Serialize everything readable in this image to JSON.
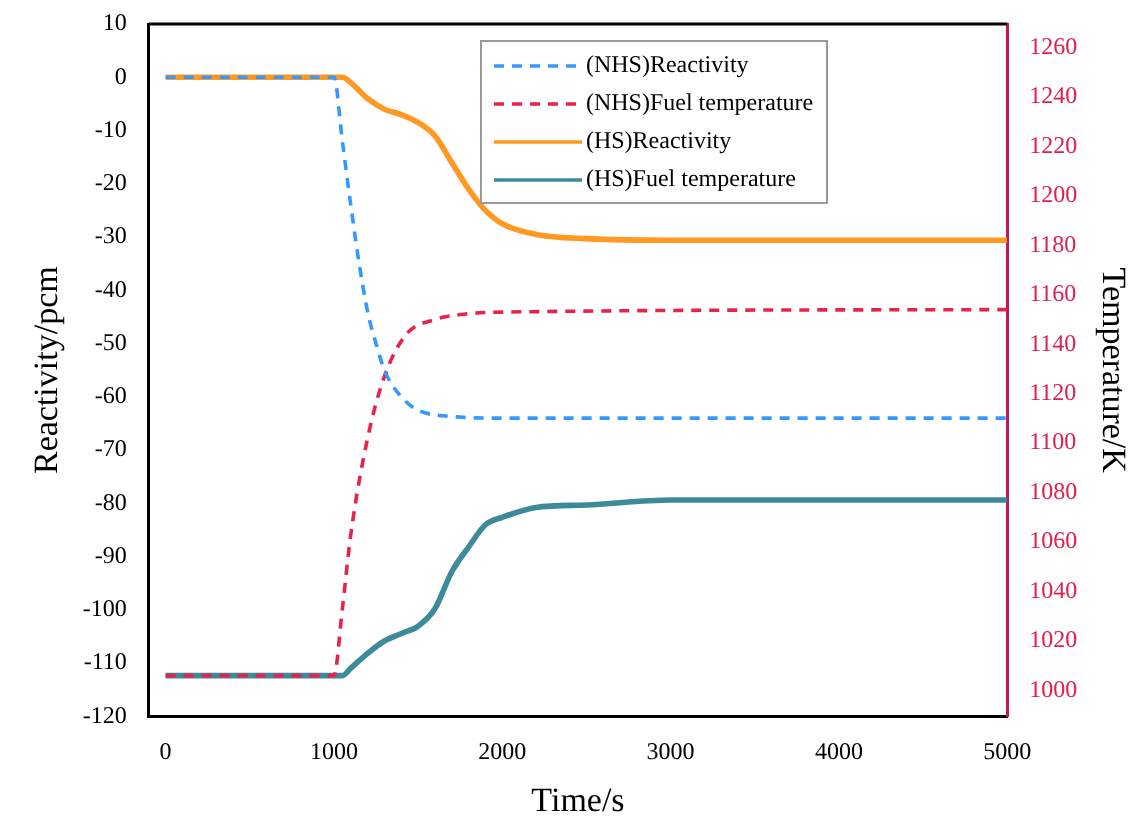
{
  "chart_data": {
    "type": "line",
    "xlabel": "Time/s",
    "ylabel": "Reactivity/pcm",
    "y2label": "Temperature/K",
    "xlim": [
      -100,
      5000
    ],
    "xticks": [
      0,
      1000,
      2000,
      3000,
      4000,
      5000
    ],
    "ylim": [
      -120,
      10
    ],
    "yticks": [
      -120,
      -110,
      -100,
      -90,
      -80,
      -70,
      -60,
      -50,
      -40,
      -30,
      -20,
      -10,
      0,
      10
    ],
    "y2lim": [
      989.5,
      1269.5
    ],
    "y2ticks": [
      1000,
      1020,
      1040,
      1060,
      1080,
      1100,
      1120,
      1140,
      1160,
      1180,
      1200,
      1220,
      1240,
      1260
    ],
    "grid": false,
    "legend": "top right",
    "marker": "none",
    "series": [
      {
        "name": "(NHS)Reactivity",
        "color": "#3399ff",
        "line_style": "dashed",
        "x": [
          0,
          1000,
          1050,
          1100,
          1150,
          1200,
          1250,
          1300,
          1400,
          1500,
          1700,
          2000,
          5000
        ],
        "values": [
          0,
          0,
          -12,
          -24,
          -35,
          -44,
          -50,
          -55,
          -60,
          -62.5,
          -63.7,
          -64,
          -64
        ]
      },
      {
        "name": "(NHS)Fuel temperature",
        "color": "#e8224a",
        "line_style": "dashed",
        "axis": "y2",
        "x": [
          0,
          1000,
          1050,
          1100,
          1200,
          1300,
          1430,
          1600,
          1750,
          2000,
          5000
        ],
        "values": [
          1006,
          1006,
          1033,
          1063,
          1102,
          1127,
          1144,
          1150,
          1152,
          1153,
          1154
        ]
      },
      {
        "name": "(HS)Reactivity",
        "color": "#ff9922",
        "line_style": "solid",
        "x": [
          0,
          1050,
          1100,
          1200,
          1300,
          1400,
          1500,
          1600,
          1700,
          1800,
          1900,
          2000,
          2200,
          2500,
          3000,
          5000
        ],
        "values": [
          0,
          0,
          -1,
          -4,
          -6,
          -7,
          -8.5,
          -11,
          -16,
          -21,
          -25,
          -27.5,
          -29.5,
          -30.3,
          -30.6,
          -30.6
        ]
      },
      {
        "name": "(HS)Fuel temperature",
        "color": "#3d8a9a",
        "line_style": "solid",
        "axis": "y2",
        "x": [
          0,
          1050,
          1100,
          1200,
          1300,
          1400,
          1500,
          1600,
          1700,
          1800,
          1900,
          2000,
          2200,
          2500,
          3000,
          5000
        ],
        "values": [
          1006,
          1006,
          1009,
          1015,
          1020,
          1023,
          1026,
          1033,
          1048,
          1058,
          1067,
          1070,
          1074,
          1075,
          1077,
          1077
        ]
      }
    ]
  }
}
